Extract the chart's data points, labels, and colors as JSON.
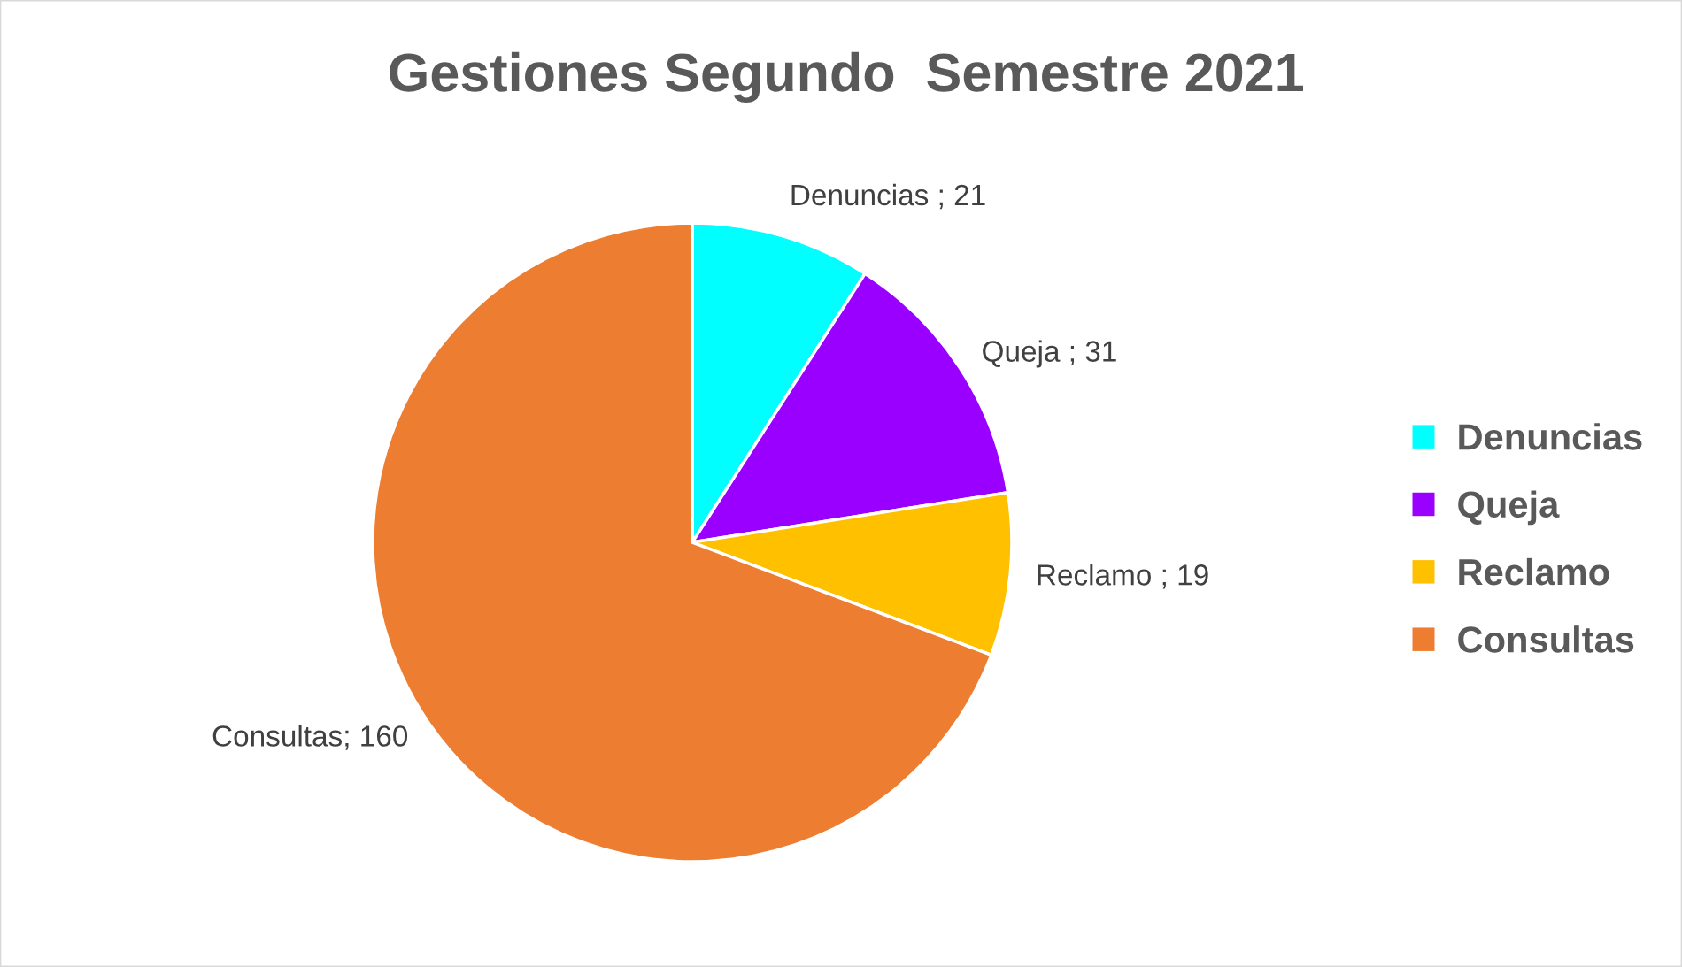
{
  "chart_data": {
    "type": "pie",
    "title": "Gestiones Segundo  Semestre 2021",
    "categories": [
      "Denuncias",
      "Queja",
      "Reclamo",
      "Consultas"
    ],
    "values": [
      21,
      31,
      19,
      160
    ],
    "colors": [
      "#00ffff",
      "#9900ff",
      "#ffc000",
      "#ed7d31"
    ],
    "value_labels": [
      "Denuncias ; 21",
      "Queja ; 31",
      "Reclamo ; 19",
      "Consultas; 160"
    ],
    "legend": "right"
  }
}
